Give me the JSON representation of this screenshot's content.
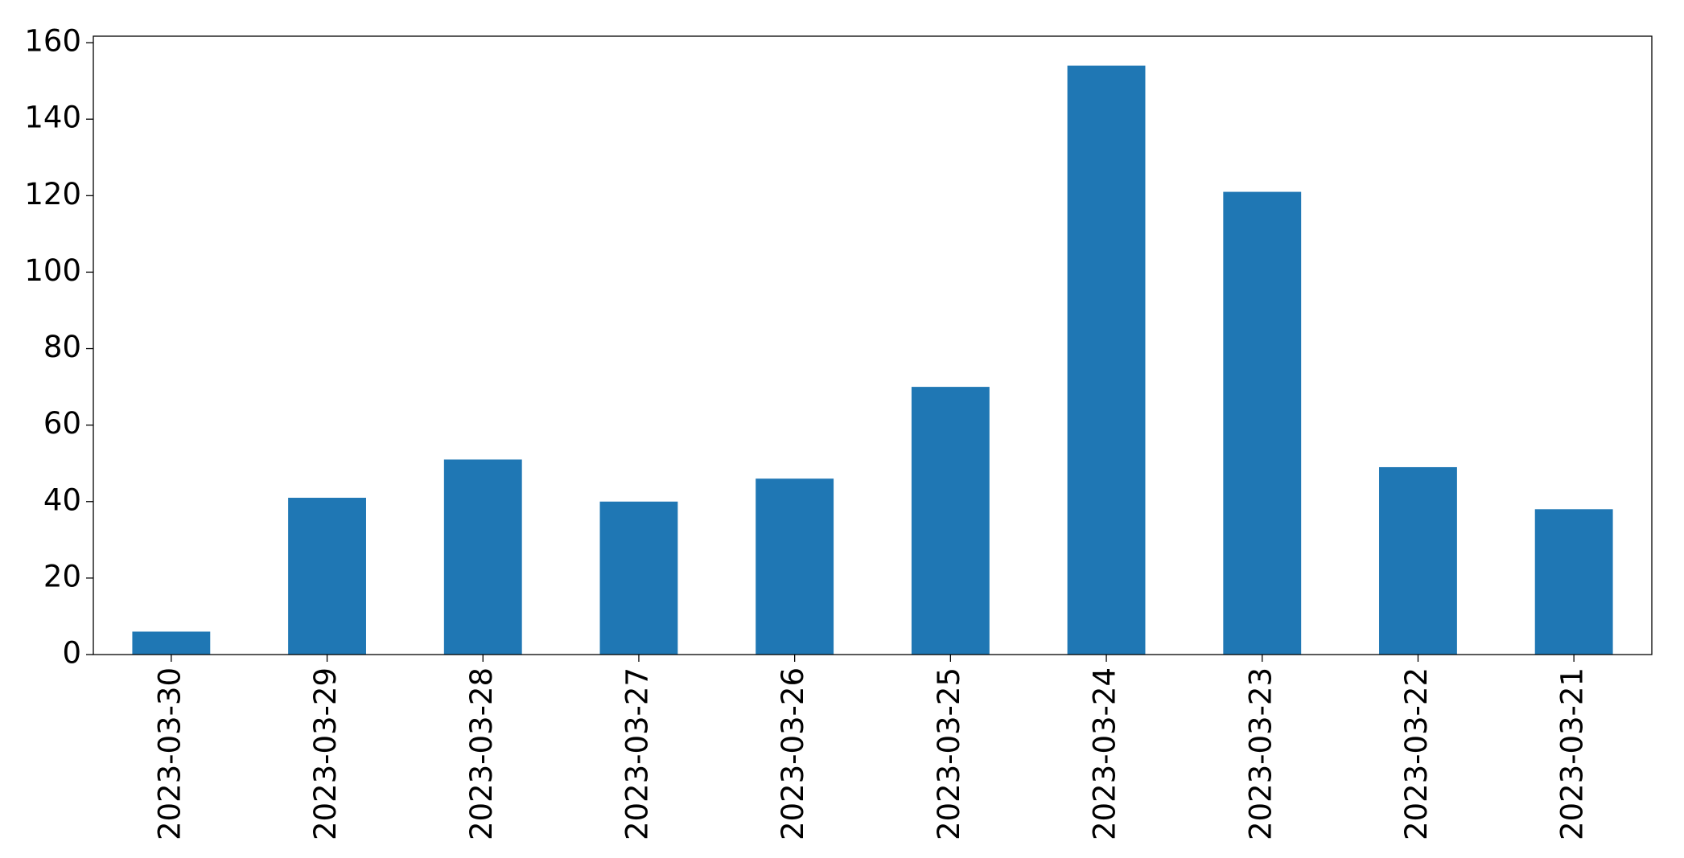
{
  "chart_data": {
    "type": "bar",
    "categories": [
      "2023-03-30",
      "2023-03-29",
      "2023-03-28",
      "2023-03-27",
      "2023-03-26",
      "2023-03-25",
      "2023-03-24",
      "2023-03-23",
      "2023-03-22",
      "2023-03-21"
    ],
    "values": [
      6,
      41,
      51,
      40,
      46,
      70,
      154,
      121,
      49,
      38
    ],
    "color": "#1f77b4",
    "ylim": [
      0,
      161.7
    ],
    "yticks": [
      0,
      20,
      40,
      60,
      80,
      100,
      120,
      140,
      160
    ],
    "grid": false
  }
}
